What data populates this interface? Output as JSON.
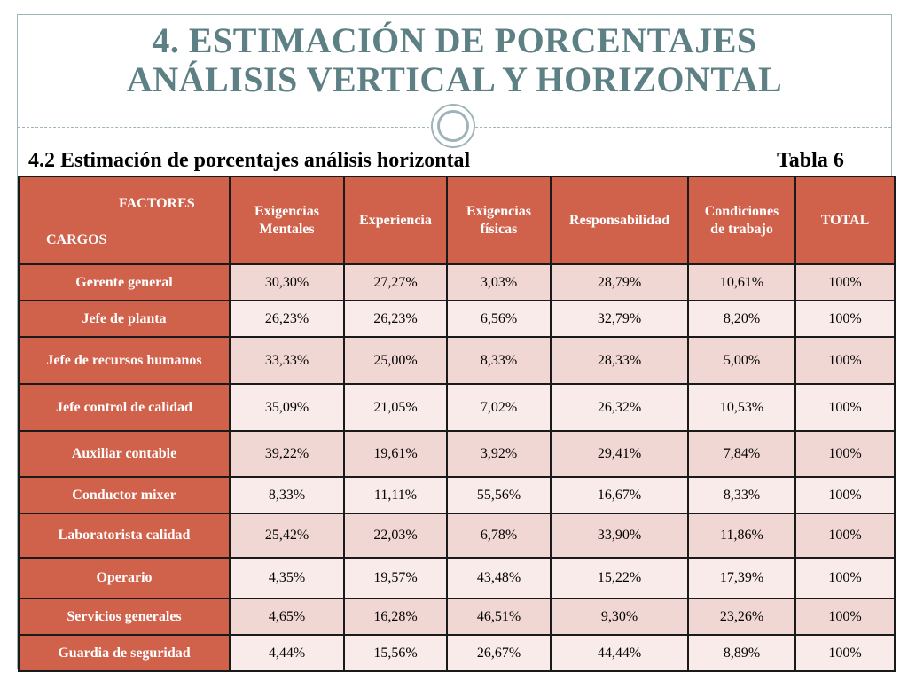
{
  "title": {
    "line1": "4. ESTIMACIÓN DE PORCENTAJES",
    "line2": "ANÁLISIS VERTICAL Y HORIZONTAL"
  },
  "section_heading": "4.2 Estimación de porcentajes análisis horizontal",
  "table_label": "Tabla 6",
  "table": {
    "corner_top": "FACTORES",
    "corner_bottom": "CARGOS",
    "columns": [
      {
        "line1": "Exigencias",
        "line2": "Mentales"
      },
      {
        "line1": "Experiencia",
        "line2": ""
      },
      {
        "line1": "Exigencias",
        "line2": "físicas"
      },
      {
        "line1": "Responsabilidad",
        "line2": ""
      },
      {
        "line1": "Condiciones",
        "line2": "de trabajo"
      },
      {
        "line1": "TOTAL",
        "line2": ""
      }
    ],
    "rows": [
      {
        "cargo": "Gerente general",
        "values": [
          "30,30%",
          "27,27%",
          "3,03%",
          "28,79%",
          "10,61%",
          "100%"
        ]
      },
      {
        "cargo": "Jefe de planta",
        "values": [
          "26,23%",
          "26,23%",
          "6,56%",
          "32,79%",
          "8,20%",
          "100%"
        ]
      },
      {
        "cargo": "Jefe de recursos humanos",
        "values": [
          "33,33%",
          "25,00%",
          "8,33%",
          "28,33%",
          "5,00%",
          "100%"
        ]
      },
      {
        "cargo": "Jefe control de calidad",
        "values": [
          "35,09%",
          "21,05%",
          "7,02%",
          "26,32%",
          "10,53%",
          "100%"
        ]
      },
      {
        "cargo": "Auxiliar contable",
        "values": [
          "39,22%",
          "19,61%",
          "3,92%",
          "29,41%",
          "7,84%",
          "100%"
        ]
      },
      {
        "cargo": "Conductor mixer",
        "values": [
          "8,33%",
          "11,11%",
          "55,56%",
          "16,67%",
          "8,33%",
          "100%"
        ]
      },
      {
        "cargo": "Laboratorista calidad",
        "values": [
          "25,42%",
          "22,03%",
          "6,78%",
          "33,90%",
          "11,86%",
          "100%"
        ]
      },
      {
        "cargo": "Operario",
        "values": [
          "4,35%",
          "19,57%",
          "43,48%",
          "15,22%",
          "17,39%",
          "100%"
        ]
      },
      {
        "cargo": "Servicios generales",
        "values": [
          "4,65%",
          "16,28%",
          "46,51%",
          "9,30%",
          "23,26%",
          "100%"
        ]
      },
      {
        "cargo": "Guardia de seguridad",
        "values": [
          "4,44%",
          "15,56%",
          "26,67%",
          "44,44%",
          "8,89%",
          "100%"
        ]
      }
    ]
  },
  "colors": {
    "title": "#5d8085",
    "header_fill": "#d0614b",
    "row_fill_a": "#f1d7d3",
    "row_fill_b": "#f8ebe9",
    "rule": "#9fb4b8"
  }
}
